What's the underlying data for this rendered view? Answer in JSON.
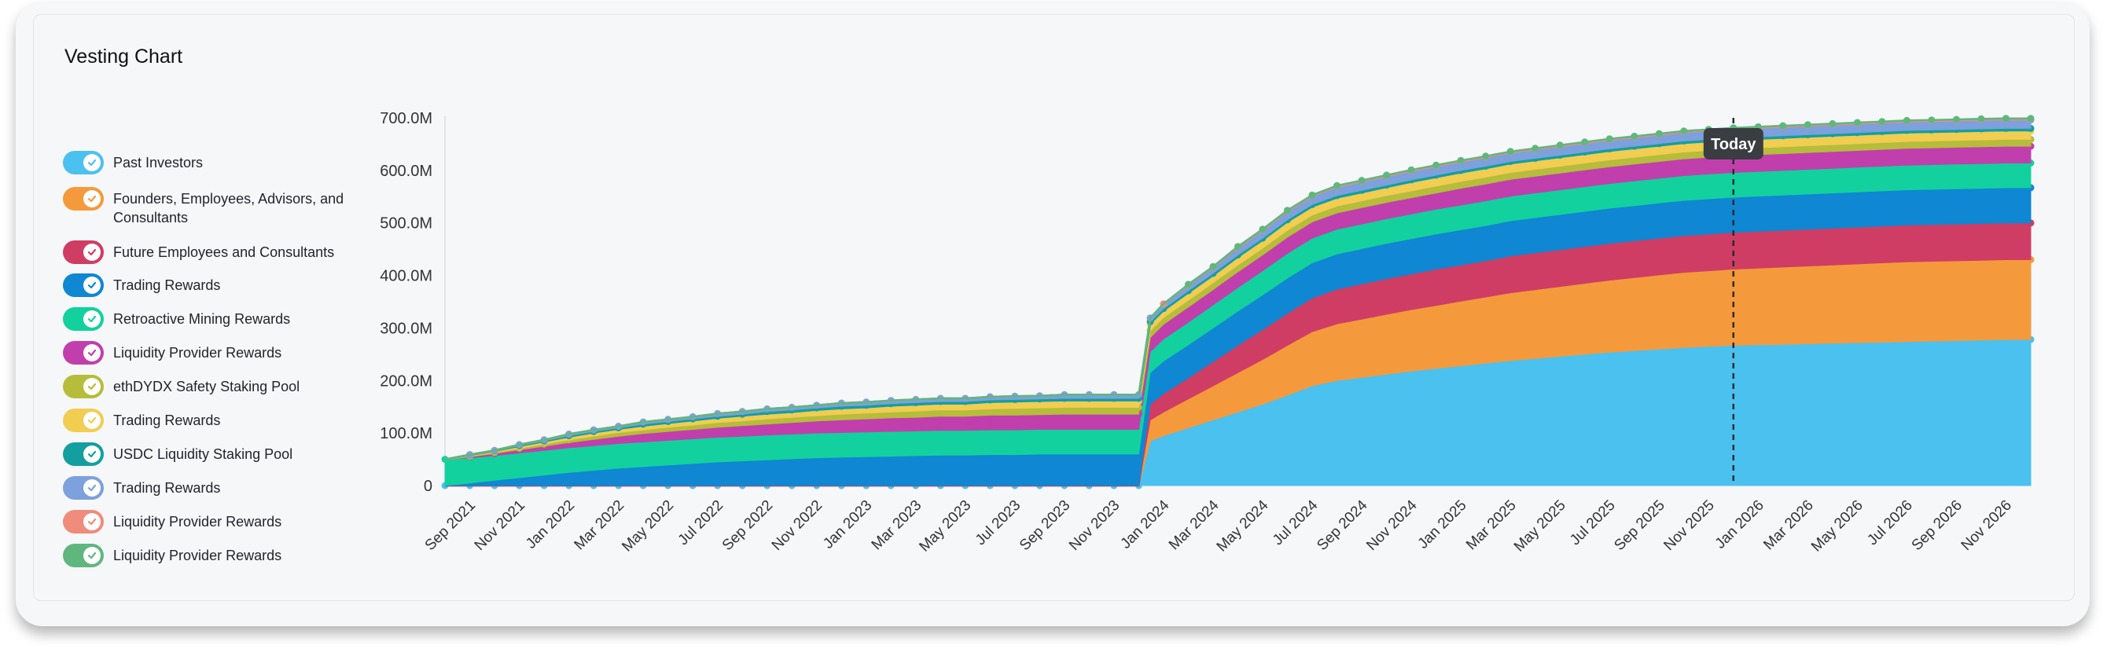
{
  "title": "Vesting Chart",
  "legend": [
    {
      "label": "Past Investors",
      "color": "#4bc1ef"
    },
    {
      "label": "Founders, Employees, Advisors, and Consultants",
      "color": "#f49a3c"
    },
    {
      "label": "Future Employees and Consultants",
      "color": "#cf3d64"
    },
    {
      "label": "Trading Rewards",
      "color": "#0f87d2"
    },
    {
      "label": "Retroactive Mining Rewards",
      "color": "#12d19e"
    },
    {
      "label": "Liquidity Provider Rewards",
      "color": "#c13fac"
    },
    {
      "label": "ethDYDX Safety Staking Pool",
      "color": "#b5bd3b"
    },
    {
      "label": "Trading Rewards",
      "color": "#f1cd51"
    },
    {
      "label": "USDC Liquidity Staking Pool",
      "color": "#139fa0"
    },
    {
      "label": "Trading Rewards",
      "color": "#7ca1dc"
    },
    {
      "label": "Liquidity Provider Rewards",
      "color": "#ef8c7c"
    },
    {
      "label": "Liquidity Provider Rewards",
      "color": "#5fb77e"
    }
  ],
  "chart_data": {
    "type": "area",
    "stacked": true,
    "title": "Vesting Chart",
    "y_ticks": [
      "0",
      "100.0M",
      "200.0M",
      "300.0M",
      "400.0M",
      "500.0M",
      "600.0M",
      "700.0M"
    ],
    "ylim": [
      0,
      700
    ],
    "y_unit": "M",
    "x_tick_labels": [
      "Sep 2021",
      "Nov 2021",
      "Jan 2022",
      "Mar 2022",
      "May 2022",
      "Jul 2022",
      "Sep 2022",
      "Nov 2022",
      "Jan 2023",
      "Mar 2023",
      "May 2023",
      "Jul 2023",
      "Sep 2023",
      "Nov 2023",
      "Jan 2024",
      "Mar 2024",
      "May 2024",
      "Jul 2024",
      "Sep 2024",
      "Nov 2024",
      "Jan 2025",
      "Mar 2025",
      "May 2025",
      "Jul 2025",
      "Sep 2025",
      "Nov 2025",
      "Jan 2026",
      "Mar 2026",
      "May 2026",
      "Jul 2026",
      "Sep 2026",
      "Nov 2026"
    ],
    "x": [
      "2021-08",
      "2021-09",
      "2021-10",
      "2021-11",
      "2021-12",
      "2022-01",
      "2022-02",
      "2022-03",
      "2022-04",
      "2022-05",
      "2022-06",
      "2022-07",
      "2022-08",
      "2022-09",
      "2022-10",
      "2022-11",
      "2022-12",
      "2023-01",
      "2023-02",
      "2023-03",
      "2023-04",
      "2023-05",
      "2023-06",
      "2023-07",
      "2023-08",
      "2023-09",
      "2023-10",
      "2023-11",
      "2023-12",
      "2023-12-15",
      "2024-01",
      "2024-02",
      "2024-03",
      "2024-04",
      "2024-05",
      "2024-06",
      "2024-07",
      "2024-08",
      "2024-09",
      "2024-10",
      "2024-11",
      "2024-12",
      "2025-01",
      "2025-02",
      "2025-03",
      "2025-04",
      "2025-05",
      "2025-06",
      "2025-07",
      "2025-08",
      "2025-09",
      "2025-10",
      "2025-11",
      "2025-12",
      "2026-01",
      "2026-02",
      "2026-03",
      "2026-04",
      "2026-05",
      "2026-06",
      "2026-07",
      "2026-08",
      "2026-09",
      "2026-10",
      "2026-11",
      "2026-12"
    ],
    "series": [
      {
        "name": "Past Investors",
        "color": "#4bc1ef",
        "values": [
          0,
          0,
          0,
          0,
          0,
          0,
          0,
          0,
          0,
          0,
          0,
          0,
          0,
          0,
          0,
          0,
          0,
          0,
          0,
          0,
          0,
          0,
          0,
          0,
          0,
          0,
          0,
          0,
          0,
          85,
          95,
          110,
          125,
          140,
          155,
          172,
          190,
          200,
          206,
          212,
          218,
          223,
          228,
          233,
          238,
          242,
          246,
          250,
          254,
          257,
          260,
          263,
          265,
          267,
          268,
          269,
          270,
          271,
          272,
          273,
          274,
          275,
          276,
          277,
          278,
          278
        ]
      },
      {
        "name": "Founders, Employees, Advisors, and Consultants",
        "color": "#f49a3c",
        "values": [
          0,
          0,
          0,
          0,
          0,
          0,
          0,
          0,
          0,
          0,
          0,
          0,
          0,
          0,
          0,
          0,
          0,
          0,
          0,
          0,
          0,
          0,
          0,
          0,
          0,
          0,
          0,
          0,
          0,
          40,
          45,
          55,
          65,
          75,
          85,
          95,
          103,
          108,
          111,
          114,
          117,
          120,
          123,
          126,
          129,
          131,
          133,
          135,
          137,
          139,
          141,
          143,
          144,
          145,
          146,
          147,
          148,
          149,
          150,
          151,
          152,
          152,
          152,
          152,
          152,
          152
        ]
      },
      {
        "name": "Future Employees and Consultants",
        "color": "#cf3d64",
        "values": [
          0,
          0,
          0,
          0,
          0,
          0,
          0,
          0,
          0,
          0,
          0,
          0,
          0,
          0,
          0,
          0,
          0,
          0,
          0,
          0,
          0,
          0,
          0,
          0,
          0,
          0,
          0,
          0,
          0,
          30,
          35,
          40,
          46,
          52,
          57,
          61,
          64,
          66,
          67,
          68,
          68,
          69,
          69,
          69,
          70,
          70,
          70,
          70,
          70,
          70,
          70,
          70,
          70,
          70,
          70,
          70,
          70,
          70,
          70,
          70,
          70,
          70,
          70,
          70,
          70,
          70
        ]
      },
      {
        "name": "Trading Rewards",
        "color": "#0f87d2",
        "values": [
          0,
          5,
          10,
          15,
          20,
          25,
          29,
          33,
          36,
          39,
          42,
          45,
          47,
          49,
          51,
          53,
          54,
          55,
          56,
          57,
          58,
          58,
          59,
          59,
          60,
          60,
          60,
          60,
          60,
          60,
          62,
          63,
          64,
          65,
          66,
          67,
          67,
          67,
          67,
          67,
          67,
          67,
          67,
          67,
          67,
          67,
          67,
          67,
          67,
          67,
          67,
          67,
          67,
          67,
          67,
          67,
          67,
          67,
          67,
          67,
          67,
          67,
          67,
          67,
          67,
          67
        ]
      },
      {
        "name": "Retroactive Mining Rewards",
        "color": "#12d19e",
        "values": [
          50,
          48,
          47,
          47,
          47,
          47,
          47,
          47,
          47,
          47,
          47,
          47,
          47,
          47,
          47,
          47,
          47,
          47,
          47,
          47,
          47,
          47,
          47,
          47,
          47,
          47,
          47,
          47,
          47,
          40,
          42,
          43,
          44,
          45,
          46,
          47,
          47,
          47,
          47,
          47,
          47,
          47,
          47,
          47,
          47,
          47,
          47,
          47,
          47,
          47,
          47,
          47,
          47,
          47,
          47,
          47,
          47,
          47,
          47,
          47,
          47,
          47,
          47,
          47,
          47,
          47
        ]
      },
      {
        "name": "Liquidity Provider Rewards",
        "color": "#c13fac",
        "values": [
          0,
          2,
          4,
          6,
          8,
          10,
          12,
          14,
          16,
          17,
          18,
          19,
          20,
          21,
          22,
          23,
          24,
          25,
          26,
          26,
          27,
          27,
          28,
          28,
          28,
          29,
          29,
          29,
          29,
          27,
          28,
          29,
          29,
          30,
          30,
          31,
          31,
          31,
          31,
          31,
          31,
          31,
          32,
          32,
          32,
          32,
          32,
          32,
          32,
          32,
          32,
          32,
          32,
          32,
          32,
          32,
          32,
          32,
          32,
          32,
          32,
          32,
          32,
          32,
          32,
          32
        ]
      },
      {
        "name": "ethDYDX Safety Staking Pool",
        "color": "#b5bd3b",
        "values": [
          0,
          1,
          2,
          3,
          4,
          5,
          6,
          7,
          7,
          8,
          8,
          9,
          9,
          10,
          10,
          10,
          11,
          11,
          11,
          12,
          12,
          12,
          12,
          13,
          13,
          13,
          13,
          13,
          13,
          13,
          13,
          13,
          13,
          13,
          13,
          13,
          13,
          13,
          13,
          13,
          13,
          13,
          13,
          13,
          13,
          13,
          13,
          13,
          13,
          13,
          13,
          13,
          13,
          13,
          13,
          13,
          13,
          13,
          13,
          13,
          13,
          13,
          13,
          13,
          13,
          13
        ]
      },
      {
        "name": "Trading Rewards",
        "color": "#f1cd51",
        "values": [
          0,
          1,
          2,
          3,
          4,
          5,
          6,
          6,
          7,
          7,
          8,
          8,
          9,
          9,
          9,
          10,
          10,
          10,
          11,
          11,
          11,
          11,
          12,
          12,
          12,
          12,
          12,
          12,
          12,
          12,
          12,
          13,
          13,
          14,
          14,
          15,
          15,
          15,
          15,
          15,
          16,
          16,
          16,
          16,
          16,
          16,
          16,
          16,
          16,
          16,
          16,
          16,
          16,
          16,
          16,
          16,
          16,
          16,
          16,
          16,
          16,
          16,
          16,
          16,
          16,
          16
        ]
      },
      {
        "name": "USDC Liquidity Staking Pool",
        "color": "#139fa0",
        "values": [
          0,
          1,
          1,
          2,
          2,
          3,
          3,
          3,
          4,
          4,
          4,
          4,
          4,
          5,
          5,
          5,
          5,
          5,
          5,
          5,
          5,
          5,
          5,
          5,
          5,
          5,
          5,
          5,
          5,
          5,
          5,
          5,
          5,
          5,
          5,
          5,
          5,
          5,
          5,
          5,
          5,
          5,
          5,
          5,
          5,
          5,
          5,
          5,
          5,
          5,
          5,
          5,
          5,
          5,
          5,
          5,
          5,
          5,
          5,
          5,
          5,
          5,
          5,
          5,
          5,
          5
        ]
      },
      {
        "name": "Trading Rewards",
        "color": "#7ca1dc",
        "values": [
          0,
          1,
          1,
          2,
          2,
          3,
          3,
          3,
          4,
          4,
          4,
          5,
          5,
          5,
          5,
          5,
          6,
          6,
          6,
          6,
          6,
          6,
          6,
          6,
          6,
          7,
          7,
          7,
          7,
          7,
          8,
          10,
          11,
          13,
          14,
          15,
          15,
          16,
          16,
          16,
          16,
          16,
          16,
          16,
          16,
          16,
          16,
          16,
          16,
          16,
          16,
          16,
          16,
          16,
          16,
          16,
          16,
          16,
          16,
          16,
          16,
          16,
          16,
          16,
          16,
          16
        ]
      },
      {
        "name": "Liquidity Provider Rewards",
        "color": "#ef8c7c",
        "values": [
          0,
          0,
          0,
          0,
          0,
          0,
          0,
          0,
          0,
          0,
          0,
          0,
          0,
          0,
          0,
          0,
          0,
          0,
          0,
          0,
          0,
          0,
          0,
          0,
          0,
          0,
          0,
          0,
          0,
          0,
          1,
          1,
          1,
          2,
          2,
          2,
          2,
          2,
          2,
          2,
          2,
          2,
          2,
          2,
          2,
          2,
          2,
          2,
          2,
          2,
          2,
          2,
          2,
          2,
          2,
          2,
          2,
          2,
          2,
          2,
          2,
          2,
          2,
          2,
          2,
          2
        ]
      },
      {
        "name": "Liquidity Provider Rewards",
        "color": "#5fb77e",
        "values": [
          0,
          0,
          0,
          0,
          0,
          0,
          0,
          0,
          0,
          0,
          0,
          0,
          0,
          0,
          0,
          0,
          0,
          0,
          0,
          0,
          0,
          0,
          0,
          0,
          0,
          0,
          0,
          0,
          0,
          0,
          0,
          1,
          1,
          1,
          1,
          1,
          1,
          1,
          1,
          1,
          1,
          1,
          1,
          1,
          1,
          1,
          1,
          1,
          1,
          1,
          1,
          1,
          1,
          1,
          1,
          1,
          1,
          1,
          1,
          1,
          1,
          1,
          1,
          1,
          1,
          1
        ]
      }
    ],
    "marker": {
      "label": "Today",
      "x": "2025-12"
    },
    "legend_position": "left",
    "grid": false
  }
}
